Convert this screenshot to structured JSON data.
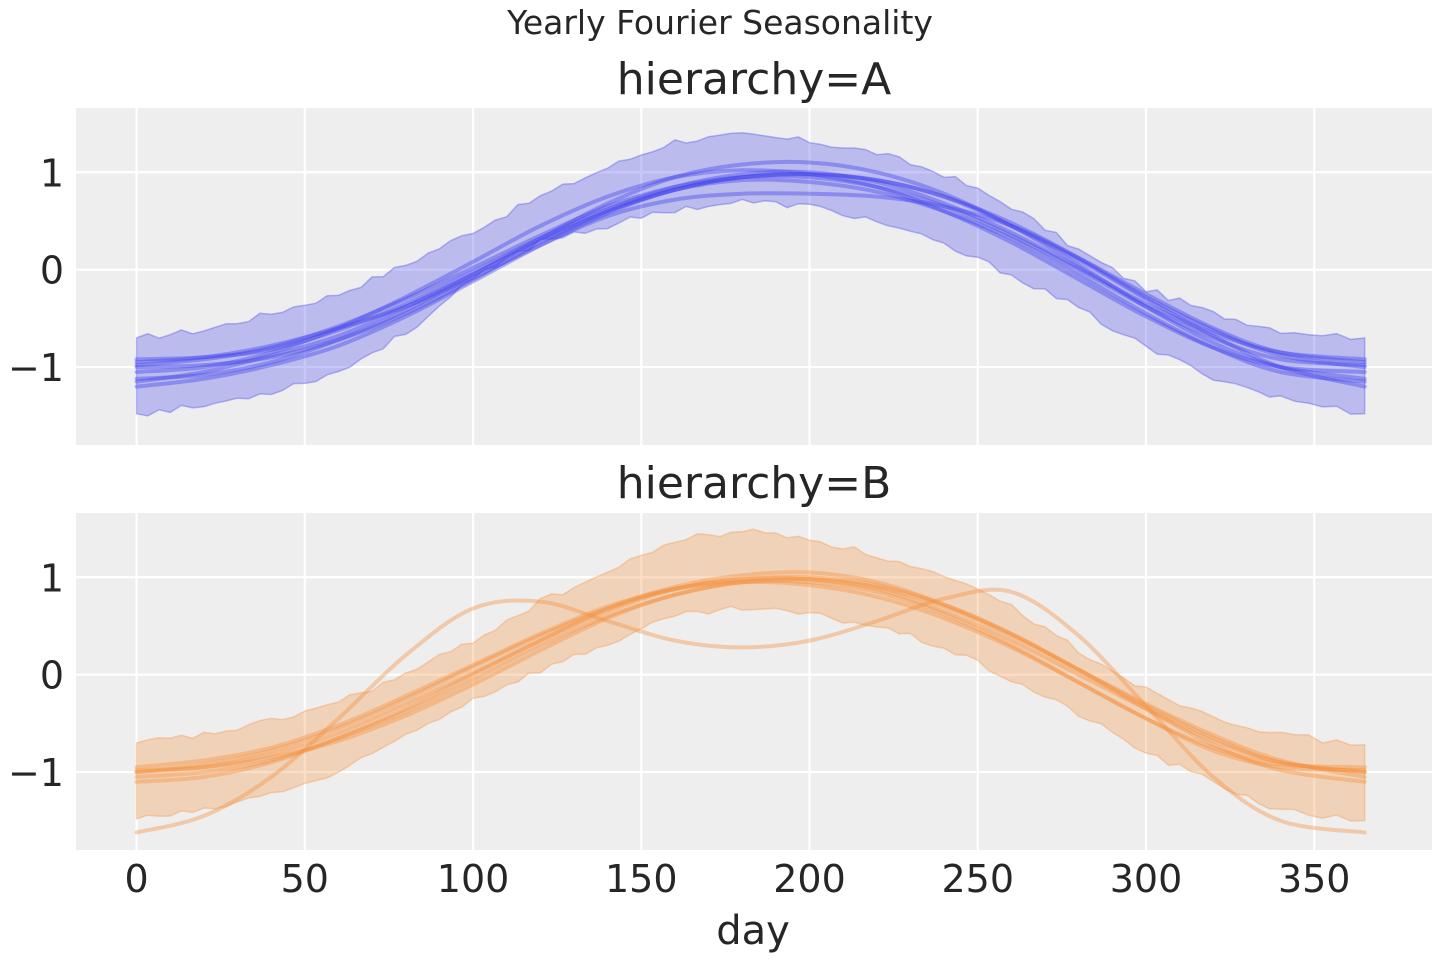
{
  "figure": {
    "suptitle": "Yearly Fourier Seasonality",
    "background": "#ffffff",
    "panel_background": "#eeeeee",
    "grid_color": "#ffffff"
  },
  "chart_data": [
    {
      "type": "line",
      "title": "hierarchy=A",
      "xlabel": "",
      "ylabel": "",
      "xlim": [
        -18,
        385
      ],
      "ylim": [
        -1.8,
        1.66
      ],
      "xticks": [
        0,
        50,
        100,
        150,
        200,
        250,
        300,
        350
      ],
      "yticks": [
        -1,
        0,
        1
      ],
      "ytick_labels": [
        "−1",
        "0",
        "1"
      ],
      "show_xtick_labels": false,
      "grid": true,
      "color": "#4444ee",
      "band": {
        "x": [
          0,
          20,
          40,
          60,
          80,
          100,
          120,
          140,
          160,
          180,
          200,
          220,
          240,
          260,
          280,
          300,
          320,
          340,
          365
        ],
        "upper": [
          -0.7,
          -0.62,
          -0.45,
          -0.25,
          0.05,
          0.4,
          0.75,
          1.05,
          1.32,
          1.38,
          1.32,
          1.2,
          0.98,
          0.65,
          0.2,
          -0.2,
          -0.45,
          -0.62,
          -0.7
        ],
        "lower": [
          -1.48,
          -1.4,
          -1.25,
          -1.05,
          -0.65,
          -0.1,
          0.3,
          0.45,
          0.62,
          0.7,
          0.65,
          0.5,
          0.25,
          -0.05,
          -0.4,
          -0.8,
          -1.1,
          -1.32,
          -1.48
        ]
      },
      "series_x": [
        0,
        20,
        40,
        60,
        80,
        100,
        120,
        140,
        160,
        180,
        200,
        220,
        240,
        260,
        280,
        300,
        320,
        340,
        365
      ],
      "series": [
        {
          "values": [
            -0.92,
            -0.9,
            -0.82,
            -0.62,
            -0.35,
            -0.02,
            0.32,
            0.62,
            0.85,
            0.98,
            1.0,
            0.9,
            0.68,
            0.38,
            0.02,
            -0.35,
            -0.65,
            -0.85,
            -0.92
          ]
        },
        {
          "values": [
            -1.12,
            -1.08,
            -0.95,
            -0.72,
            -0.42,
            -0.05,
            0.32,
            0.68,
            0.95,
            1.08,
            1.1,
            1.0,
            0.78,
            0.45,
            0.05,
            -0.38,
            -0.75,
            -1.0,
            -1.12
          ]
        },
        {
          "values": [
            -1.05,
            -1.0,
            -0.85,
            -0.6,
            -0.28,
            0.08,
            0.45,
            0.75,
            0.95,
            1.02,
            0.98,
            0.85,
            0.6,
            0.28,
            -0.1,
            -0.48,
            -0.8,
            -1.0,
            -1.05
          ]
        },
        {
          "values": [
            -0.98,
            -0.92,
            -0.8,
            -0.58,
            -0.3,
            0.02,
            0.35,
            0.65,
            0.85,
            0.95,
            0.95,
            0.85,
            0.65,
            0.35,
            0.0,
            -0.38,
            -0.7,
            -0.92,
            -0.98
          ]
        },
        {
          "values": [
            -1.2,
            -1.12,
            -0.98,
            -0.78,
            -0.48,
            -0.12,
            0.25,
            0.58,
            0.82,
            0.95,
            0.98,
            0.92,
            0.75,
            0.45,
            0.1,
            -0.3,
            -0.68,
            -1.0,
            -1.2
          ]
        },
        {
          "values": [
            -1.0,
            -0.98,
            -0.9,
            -0.72,
            -0.45,
            -0.1,
            0.28,
            0.6,
            0.82,
            0.95,
            0.98,
            0.92,
            0.75,
            0.48,
            0.12,
            -0.28,
            -0.62,
            -0.88,
            -1.0
          ]
        },
        {
          "values": [
            -0.95,
            -0.9,
            -0.78,
            -0.6,
            -0.38,
            -0.08,
            0.25,
            0.55,
            0.72,
            0.78,
            0.78,
            0.75,
            0.65,
            0.45,
            0.12,
            -0.25,
            -0.6,
            -0.85,
            -0.95
          ]
        },
        {
          "values": [
            -1.15,
            -1.05,
            -0.88,
            -0.68,
            -0.38,
            -0.05,
            0.3,
            0.6,
            0.82,
            0.92,
            0.9,
            0.8,
            0.6,
            0.32,
            -0.05,
            -0.45,
            -0.8,
            -1.05,
            -1.15
          ]
        }
      ]
    },
    {
      "type": "line",
      "title": "hierarchy=B",
      "xlabel": "day",
      "ylabel": "",
      "xlim": [
        -18,
        385
      ],
      "ylim": [
        -1.8,
        1.66
      ],
      "xticks": [
        0,
        50,
        100,
        150,
        200,
        250,
        300,
        350
      ],
      "yticks": [
        -1,
        0,
        1
      ],
      "ytick_labels": [
        "−1",
        "0",
        "1"
      ],
      "show_xtick_labels": true,
      "grid": true,
      "color": "#f5913e",
      "band": {
        "x": [
          0,
          20,
          40,
          60,
          80,
          100,
          120,
          140,
          160,
          180,
          200,
          220,
          240,
          260,
          280,
          300,
          320,
          340,
          365
        ],
        "upper": [
          -0.7,
          -0.62,
          -0.48,
          -0.28,
          0.0,
          0.35,
          0.75,
          1.05,
          1.38,
          1.48,
          1.4,
          1.22,
          1.0,
          0.7,
          0.25,
          -0.15,
          -0.42,
          -0.62,
          -0.72
        ],
        "lower": [
          -1.48,
          -1.4,
          -1.22,
          -1.02,
          -0.62,
          -0.25,
          0.05,
          0.32,
          0.6,
          0.68,
          0.62,
          0.5,
          0.28,
          -0.05,
          -0.4,
          -0.8,
          -1.1,
          -1.4,
          -1.5
        ]
      },
      "series_x": [
        0,
        20,
        40,
        60,
        80,
        100,
        120,
        140,
        160,
        180,
        200,
        220,
        240,
        260,
        280,
        300,
        320,
        340,
        365
      ],
      "series": [
        {
          "values": [
            -1.0,
            -0.95,
            -0.82,
            -0.6,
            -0.3,
            0.02,
            0.35,
            0.65,
            0.88,
            0.98,
            0.98,
            0.88,
            0.65,
            0.35,
            0.0,
            -0.35,
            -0.68,
            -0.9,
            -1.0
          ]
        },
        {
          "values": [
            -1.1,
            -1.05,
            -0.9,
            -0.65,
            -0.35,
            0.0,
            0.35,
            0.68,
            0.9,
            1.02,
            1.05,
            0.95,
            0.72,
            0.42,
            0.05,
            -0.35,
            -0.72,
            -0.98,
            -1.1
          ]
        },
        {
          "values": [
            -0.95,
            -0.88,
            -0.75,
            -0.52,
            -0.22,
            0.1,
            0.42,
            0.7,
            0.88,
            0.95,
            0.92,
            0.8,
            0.58,
            0.28,
            -0.08,
            -0.45,
            -0.75,
            -0.92,
            -0.95
          ]
        },
        {
          "values": [
            -1.05,
            -1.0,
            -0.88,
            -0.65,
            -0.38,
            -0.05,
            0.3,
            0.6,
            0.82,
            0.95,
            0.98,
            0.9,
            0.7,
            0.4,
            0.05,
            -0.3,
            -0.62,
            -0.88,
            -1.05
          ]
        },
        {
          "values": [
            -1.0,
            -0.92,
            -0.78,
            -0.55,
            -0.25,
            0.08,
            0.4,
            0.68,
            0.88,
            0.98,
            1.0,
            0.92,
            0.72,
            0.42,
            0.05,
            -0.32,
            -0.65,
            -0.9,
            -1.0
          ]
        },
        {
          "values": [
            -0.98,
            -0.95,
            -0.85,
            -0.68,
            -0.42,
            -0.1,
            0.25,
            0.58,
            0.82,
            0.95,
            0.95,
            0.85,
            0.62,
            0.3,
            -0.08,
            -0.45,
            -0.78,
            -0.95,
            -0.98
          ]
        },
        {
          "values": [
            -1.62,
            -1.45,
            -1.05,
            -0.45,
            0.2,
            0.68,
            0.75,
            0.55,
            0.35,
            0.28,
            0.35,
            0.55,
            0.78,
            0.85,
            0.4,
            -0.32,
            -1.05,
            -1.5,
            -1.62
          ]
        }
      ]
    }
  ]
}
